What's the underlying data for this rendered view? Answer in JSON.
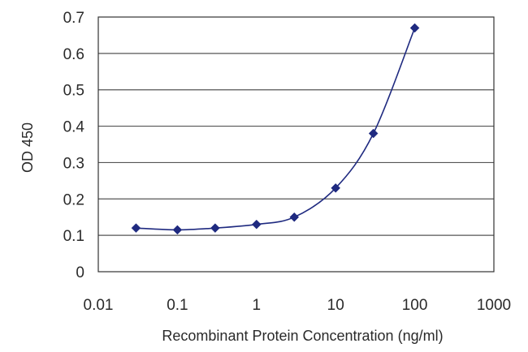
{
  "chart_data": {
    "type": "line",
    "title": "",
    "xlabel": "Recombinant Protein Concentration (ng/ml)",
    "ylabel": "OD 450",
    "x_scale": "log",
    "xlim": [
      0.01,
      1000
    ],
    "ylim": [
      0,
      0.7
    ],
    "x_ticks": [
      "0.01",
      "0.1",
      "1",
      "10",
      "100",
      "1000"
    ],
    "y_ticks": [
      "0",
      "0.1",
      "0.2",
      "0.3",
      "0.4",
      "0.5",
      "0.6",
      "0.7"
    ],
    "grid": "horizontal",
    "legend": "none",
    "series": [
      {
        "color": "#1f2a80",
        "marker": "diamond",
        "x": [
          0.03,
          0.1,
          0.3,
          1,
          3,
          10,
          30,
          100
        ],
        "y": [
          0.12,
          0.115,
          0.12,
          0.13,
          0.15,
          0.23,
          0.38,
          0.67
        ]
      }
    ],
    "gridline_color": "#555555",
    "axis_color": "#333333"
  }
}
